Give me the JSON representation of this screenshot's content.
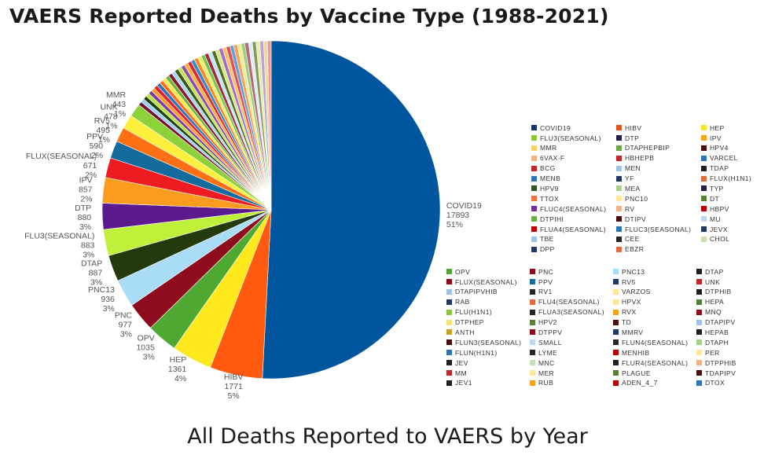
{
  "page": {
    "title": "VAERS Reported Deaths by Vaccine Type (1988-2021)",
    "caption": "All Deaths Reported to VAERS by Year"
  },
  "chart_data": {
    "type": "pie",
    "title": "VAERS Reported Deaths by Vaccine Type (1988-2021)",
    "slices": [
      {
        "label": "COVID19",
        "value": 17893,
        "pct": "51%",
        "color": "#00569e"
      },
      {
        "label": "HIBV",
        "value": 1771,
        "pct": "5%",
        "color": "#ff5a0f"
      },
      {
        "label": "HEP",
        "value": 1361,
        "pct": "4%",
        "color": "#ffe81c"
      },
      {
        "label": "OPV",
        "value": 1035,
        "pct": "3%",
        "color": "#4fa832"
      },
      {
        "label": "PNC",
        "value": 977,
        "pct": "3%",
        "color": "#8e0b1e"
      },
      {
        "label": "PNC13",
        "value": 936,
        "pct": "3%",
        "color": "#a9dcf6"
      },
      {
        "label": "DTAP",
        "value": 887,
        "pct": "3%",
        "color": "#243a0c"
      },
      {
        "label": "FLU3(SEASONAL)",
        "value": 883,
        "pct": "3%",
        "color": "#bff03a"
      },
      {
        "label": "DTP",
        "value": 880,
        "pct": "3%",
        "color": "#5b1a8e"
      },
      {
        "label": "IPV",
        "value": 857,
        "pct": "2%",
        "color": "#fc9c1e"
      },
      {
        "label": "FLUX(SEASONAL)",
        "value": 671,
        "pct": "2%",
        "color": "#ee1b21"
      },
      {
        "label": "PPV",
        "value": 590,
        "pct": "2%",
        "color": "#126b9c"
      },
      {
        "label": "RV5",
        "value": 495,
        "pct": "1%",
        "color": "#ff6f14"
      },
      {
        "label": "UNK",
        "value": 478,
        "pct": "1%",
        "color": "#fdf03c"
      },
      {
        "label": "MMR",
        "value": 443,
        "pct": "1%",
        "color": "#8dd23b"
      }
    ],
    "others_colors": [
      "#780e2c",
      "#9ad0f5",
      "#263f0f",
      "#b7e53c",
      "#7f38a6",
      "#ff9c24",
      "#e81b2b",
      "#2c78b8",
      "#ff6d18",
      "#fbe94a",
      "#6eb63f",
      "#8a1530",
      "#a6d8ef",
      "#3c5415",
      "#c4e657",
      "#8f4bb0",
      "#fbb03b",
      "#d92b2b",
      "#3a89c9",
      "#fa8a1e",
      "#f6ec6b",
      "#78c453",
      "#a12b3e",
      "#c2e5f5",
      "#556b22",
      "#d6ec81",
      "#a46cc4",
      "#f7c46a",
      "#e05151",
      "#6a9fd6",
      "#f4a35e",
      "#f3ec96",
      "#9fcf85",
      "#b56a75",
      "#dcedf5",
      "#8a9860",
      "#e3efad",
      "#bea4d4",
      "#f1d7a0",
      "#e69a9a"
    ],
    "legend_upper": [
      {
        "label": "COVID19",
        "color": "#12366b"
      },
      {
        "label": "HIBV",
        "color": "#e2541d"
      },
      {
        "label": "HEP",
        "color": "#f6e32a"
      },
      {
        "label": "FLU3(SEASONAL)",
        "color": "#8dc63f"
      },
      {
        "label": "DTP",
        "color": "#2b1b4a"
      },
      {
        "label": "IPV",
        "color": "#f6a21c"
      },
      {
        "label": "MMR",
        "color": "#f9d26a"
      },
      {
        "label": "DTAPHEPBIP",
        "color": "#6aa84f"
      },
      {
        "label": "HPV4",
        "color": "#4a0e10"
      },
      {
        "label": "6VAX-F",
        "color": "#f4b183"
      },
      {
        "label": "HBHEPB",
        "color": "#c0262c"
      },
      {
        "label": "VARCEL",
        "color": "#2e75b6"
      },
      {
        "label": "BCG",
        "color": "#c0262c"
      },
      {
        "label": "MEN",
        "color": "#9dc3e6"
      },
      {
        "label": "TDAP",
        "color": "#1f1f1f"
      },
      {
        "label": "MENB",
        "color": "#2e75b6"
      },
      {
        "label": "YF",
        "color": "#203864"
      },
      {
        "label": "FLUX(H1N1)",
        "color": "#e46c3c"
      },
      {
        "label": "HPV9",
        "color": "#375623"
      },
      {
        "label": "MEA",
        "color": "#a9d18e"
      },
      {
        "label": "TYP",
        "color": "#2b1b4a"
      },
      {
        "label": "TTOX",
        "color": "#f4743b"
      },
      {
        "label": "PNC10",
        "color": "#ffe699"
      },
      {
        "label": "DT",
        "color": "#548235"
      },
      {
        "label": "FLUC4(SEASONAL)",
        "color": "#7030a0"
      },
      {
        "label": "RV",
        "color": "#f4b183"
      },
      {
        "label": "HBPV",
        "color": "#c00000"
      },
      {
        "label": "DTPIHI",
        "color": "#70ad47"
      },
      {
        "label": "DTIPV",
        "color": "#4a0e10"
      },
      {
        "label": "MU",
        "color": "#bdd7ee"
      },
      {
        "label": "FLUA4(SEASONAL)",
        "color": "#c00000"
      },
      {
        "label": "FLUC3(SEASONAL)",
        "color": "#2e75b6"
      },
      {
        "label": "JEVX",
        "color": "#1f3864"
      },
      {
        "label": "TBE",
        "color": "#9dc3e6"
      },
      {
        "label": "CEE",
        "color": "#262626"
      },
      {
        "label": "CHOL",
        "color": "#c5e0b4"
      },
      {
        "label": "DPP",
        "color": "#1f3864"
      },
      {
        "label": "EBZR",
        "color": "#e46c3c"
      }
    ],
    "legend_lower": [
      {
        "label": "OPV",
        "color": "#4fa832"
      },
      {
        "label": "PNC",
        "color": "#8e0b1e"
      },
      {
        "label": "PNC13",
        "color": "#a9dcf6"
      },
      {
        "label": "DTAP",
        "color": "#1f1f1f"
      },
      {
        "label": "FLUX(SEASONAL)",
        "color": "#8e0b1e"
      },
      {
        "label": "PPV",
        "color": "#126b9c"
      },
      {
        "label": "RV5",
        "color": "#1f3864"
      },
      {
        "label": "UNK",
        "color": "#c0262c"
      },
      {
        "label": "DTAPIPVHIB",
        "color": "#9dc3e6"
      },
      {
        "label": "RV1",
        "color": "#262626"
      },
      {
        "label": "VARZOS",
        "color": "#ffe699"
      },
      {
        "label": "DTPHIB",
        "color": "#1f1f1f"
      },
      {
        "label": "RAB",
        "color": "#1f3864"
      },
      {
        "label": "FLU4(SEASONAL)",
        "color": "#e46c3c"
      },
      {
        "label": "HPVX",
        "color": "#ffe699"
      },
      {
        "label": "HEPA",
        "color": "#548235"
      },
      {
        "label": "FLU(H1N1)",
        "color": "#8dc63f"
      },
      {
        "label": "FLUA3(SEASONAL)",
        "color": "#262626"
      },
      {
        "label": "RVX",
        "color": "#f6a21c"
      },
      {
        "label": "MNQ",
        "color": "#8e0b1e"
      },
      {
        "label": "DTPHEP",
        "color": "#f9e27a"
      },
      {
        "label": "HPV2",
        "color": "#548235"
      },
      {
        "label": "TD",
        "color": "#4a0e10"
      },
      {
        "label": "DTAPIPV",
        "color": "#9dc3e6"
      },
      {
        "label": "ANTH",
        "color": "#c9a227"
      },
      {
        "label": "DTPPV",
        "color": "#8e0b1e"
      },
      {
        "label": "MMRV",
        "color": "#1f3864"
      },
      {
        "label": "HEPAB",
        "color": "#1f1f1f"
      },
      {
        "label": "FLUN3(SEASONAL)",
        "color": "#4a0e10"
      },
      {
        "label": "SMALL",
        "color": "#bdd7ee"
      },
      {
        "label": "FLUN4(SEASONAL)",
        "color": "#262626"
      },
      {
        "label": "DTAPH",
        "color": "#a9d18e"
      },
      {
        "label": "FLUN(H1N1)",
        "color": "#2e75b6"
      },
      {
        "label": "LYME",
        "color": "#262626"
      },
      {
        "label": "MENHIB",
        "color": "#c00000"
      },
      {
        "label": "PER",
        "color": "#ffe699"
      },
      {
        "label": "JEV",
        "color": "#1f1f1f"
      },
      {
        "label": "MNC",
        "color": "#c5e0b4"
      },
      {
        "label": "FLUR4(SEASONAL)",
        "color": "#1f1f1f"
      },
      {
        "label": "DTPPHIB",
        "color": "#f4b183"
      },
      {
        "label": "MM",
        "color": "#c0262c"
      },
      {
        "label": "MER",
        "color": "#ffe699"
      },
      {
        "label": "PLAGUE",
        "color": "#548235"
      },
      {
        "label": "TDAPIPV",
        "color": "#4a0e10"
      },
      {
        "label": "JEV1",
        "color": "#1f1f1f"
      },
      {
        "label": "RUB",
        "color": "#f6a21c"
      },
      {
        "label": "ADEN_4_7",
        "color": "#c00000"
      },
      {
        "label": "DTOX",
        "color": "#2e75b6"
      }
    ]
  }
}
